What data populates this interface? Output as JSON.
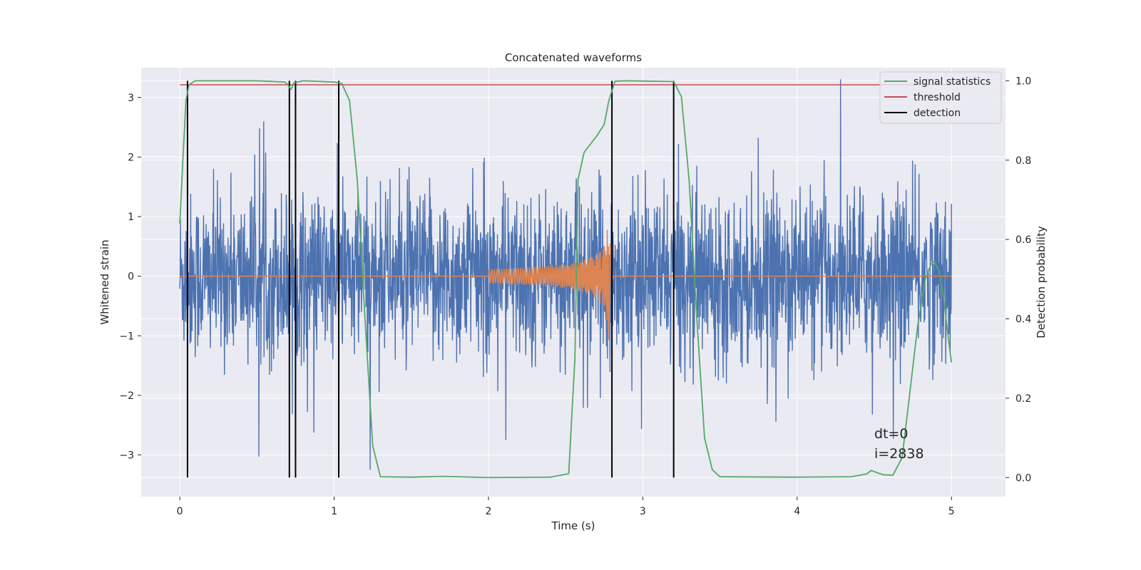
{
  "chart_data": {
    "type": "line",
    "title": "Concatenated waveforms",
    "xlabel": "Time (s)",
    "ylabel": "Whitened strain",
    "ylabel_right": "Detection probability",
    "xlim": [
      -0.25,
      5.35
    ],
    "ylim": [
      -3.7,
      3.5
    ],
    "ylim_right": [
      -0.048,
      1.033
    ],
    "x_ticks": [
      0,
      1,
      2,
      3,
      4,
      5
    ],
    "y_ticks": [
      -3,
      -2,
      -1,
      0,
      1,
      2,
      3
    ],
    "y_tick_labels": [
      "−3",
      "−2",
      "−1",
      "0",
      "1",
      "2",
      "3"
    ],
    "y_ticks_right": [
      0.0,
      0.2,
      0.4,
      0.6,
      0.8,
      1.0
    ],
    "y_tick_labels_right": [
      "0.0",
      "0.2",
      "0.4",
      "0.6",
      "0.8",
      "1.0"
    ],
    "grid": true,
    "legend_position": "top-right",
    "colors": {
      "background": "#eaeaf2",
      "grid": "#ffffff",
      "strain": "#4c72b0",
      "injected_signal": "#dd8452",
      "signal_statistics": "#55a868",
      "threshold": "#c44e52",
      "detection": "#000000"
    },
    "legend": [
      {
        "key": "signal_statistics",
        "label": "signal statistics"
      },
      {
        "key": "threshold",
        "label": "threshold"
      },
      {
        "key": "detection",
        "label": "detection"
      }
    ],
    "strain_noise": {
      "x_range": [
        0,
        5
      ],
      "typical_amplitude": 0.65,
      "min": -3.3,
      "max": 3.4
    },
    "injected_chirp": {
      "x_start": 2.0,
      "x_merger": 2.78,
      "start_amplitude": 0.12,
      "peak_amplitude": 1.0,
      "min": -1.1
    },
    "threshold_value": 0.99,
    "detections_x": [
      0.05,
      0.71,
      0.75,
      1.03,
      2.8,
      3.2
    ],
    "signal_statistics": {
      "x": [
        0,
        0.02,
        0.04,
        0.06,
        0.1,
        0.5,
        0.68,
        0.7,
        0.72,
        0.74,
        0.8,
        1.0,
        1.05,
        1.1,
        1.15,
        1.2,
        1.25,
        1.3,
        1.5,
        1.7,
        2.0,
        2.4,
        2.52,
        2.56,
        2.58,
        2.62,
        2.7,
        2.75,
        2.78,
        2.82,
        2.9,
        3.2,
        3.25,
        3.3,
        3.35,
        3.4,
        3.45,
        3.5,
        4.0,
        4.35,
        4.45,
        4.48,
        4.52,
        4.56,
        4.62,
        4.68,
        4.72,
        4.78,
        4.83,
        4.87,
        4.89,
        4.92,
        4.95,
        4.98,
        5.0
      ],
      "y": [
        0.64,
        0.8,
        0.95,
        0.99,
        1.0,
        1.0,
        0.997,
        0.99,
        0.978,
        0.995,
        1.0,
        0.997,
        0.993,
        0.95,
        0.75,
        0.4,
        0.08,
        0.002,
        0.001,
        0.003,
        0.0,
        0.001,
        0.01,
        0.3,
        0.75,
        0.82,
        0.86,
        0.89,
        0.95,
        0.999,
        1.0,
        0.998,
        0.96,
        0.75,
        0.4,
        0.1,
        0.02,
        0.002,
        0.001,
        0.002,
        0.009,
        0.018,
        0.012,
        0.007,
        0.006,
        0.05,
        0.18,
        0.38,
        0.5,
        0.54,
        0.545,
        0.52,
        0.45,
        0.35,
        0.29
      ]
    },
    "annotations": [
      "dt=0",
      "i=2838"
    ]
  }
}
